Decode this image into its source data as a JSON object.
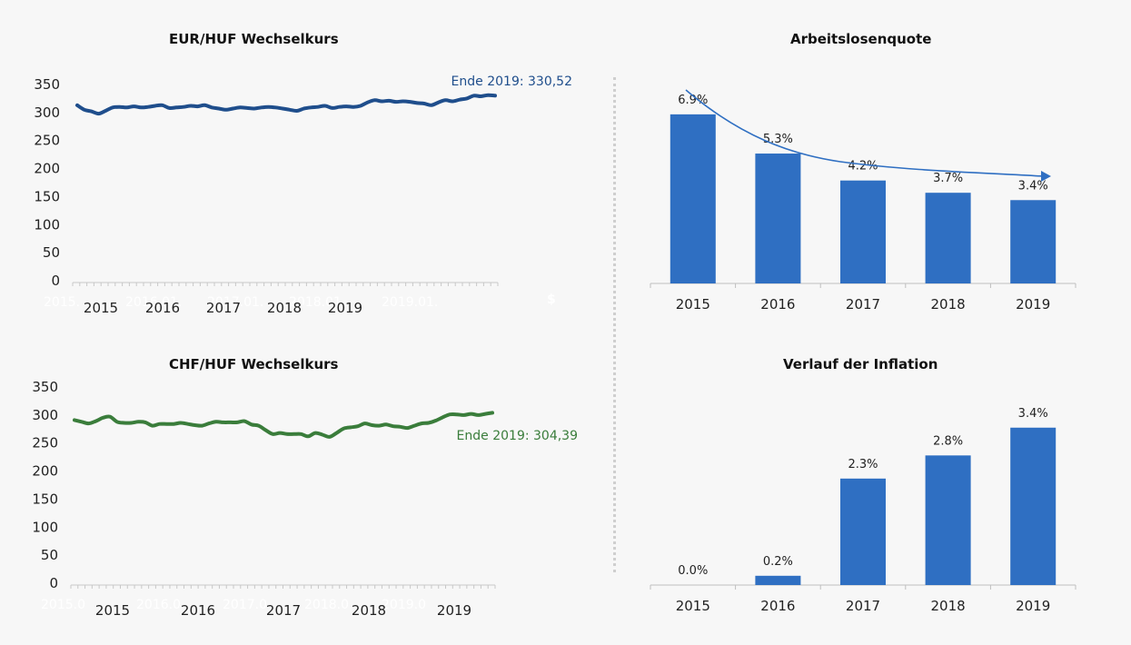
{
  "chart_data": [
    {
      "type": "line",
      "title": "EUR/HUF Wechselkurs",
      "y_ticks": [
        "350",
        "300",
        "250",
        "200",
        "150",
        "100",
        "50",
        "0"
      ],
      "ylim": [
        0,
        350
      ],
      "x_labels": [
        "2015",
        "2016",
        "2017",
        "2018",
        "2019"
      ],
      "ghost_x_labels": [
        "2015.",
        "2016.01.",
        "2017.01.",
        "2018.01.",
        "2019.01."
      ],
      "annotation": "Ende 2019: 330,52",
      "color": "#1f4e8c",
      "series": [
        {
          "values": [
            313,
            305,
            302,
            298,
            303,
            309,
            310,
            309,
            311,
            309,
            310,
            312,
            313,
            308,
            309,
            310,
            312,
            311,
            313,
            309,
            307,
            305,
            307,
            309,
            308,
            307,
            309,
            310,
            309,
            307,
            305,
            303,
            307,
            309,
            310,
            312,
            308,
            310,
            311,
            310,
            312,
            318,
            322,
            320,
            321,
            319,
            320,
            319,
            317,
            316,
            313,
            318,
            322,
            320,
            323,
            325,
            330,
            329,
            331,
            330
          ]
        }
      ]
    },
    {
      "type": "line",
      "title": "CHF/HUF Wechselkurs",
      "y_ticks": [
        "350",
        "300",
        "250",
        "200",
        "150",
        "100",
        "50",
        "0"
      ],
      "ylim": [
        0,
        350
      ],
      "x_labels": [
        "2015",
        "2016",
        "2017",
        "2018",
        "2019"
      ],
      "ghost_x_labels": [
        "2015.0",
        "2016.0",
        "2017.0",
        "2018.0",
        "2019.0"
      ],
      "annotation": "Ende 2019: 304,39",
      "color": "#3a7d3b",
      "series": [
        {
          "values": [
            291,
            288,
            285,
            289,
            295,
            297,
            288,
            286,
            286,
            288,
            287,
            281,
            284,
            284,
            284,
            286,
            284,
            282,
            281,
            285,
            288,
            287,
            287,
            287,
            289,
            283,
            281,
            273,
            266,
            268,
            266,
            266,
            266,
            262,
            268,
            265,
            261,
            268,
            276,
            278,
            280,
            285,
            282,
            281,
            283,
            280,
            279,
            277,
            281,
            285,
            286,
            290,
            296,
            301,
            301,
            300,
            302,
            300,
            302,
            304
          ]
        }
      ]
    },
    {
      "type": "bar",
      "title": "Arbeitslosenquote",
      "categories": [
        "2015",
        "2016",
        "2017",
        "2018",
        "2019"
      ],
      "values": [
        6.9,
        5.3,
        4.2,
        3.7,
        3.4
      ],
      "labels": [
        "6.9%",
        "5.3%",
        "4.2%",
        "3.7%",
        "3.4%"
      ],
      "ylim": [
        0,
        8.6
      ],
      "color": "#2f6fc2",
      "trend_arrow": true
    },
    {
      "type": "bar",
      "title": "Verlauf der Inflation",
      "categories": [
        "2015",
        "2016",
        "2017",
        "2018",
        "2019"
      ],
      "values": [
        0.0,
        0.2,
        2.3,
        2.8,
        3.4
      ],
      "labels": [
        "0.0%",
        "0.2%",
        "2.3%",
        "2.8%",
        "3.4%"
      ],
      "ylim": [
        0,
        4.2
      ],
      "color": "#2f6fc2"
    }
  ],
  "watermark": "$"
}
